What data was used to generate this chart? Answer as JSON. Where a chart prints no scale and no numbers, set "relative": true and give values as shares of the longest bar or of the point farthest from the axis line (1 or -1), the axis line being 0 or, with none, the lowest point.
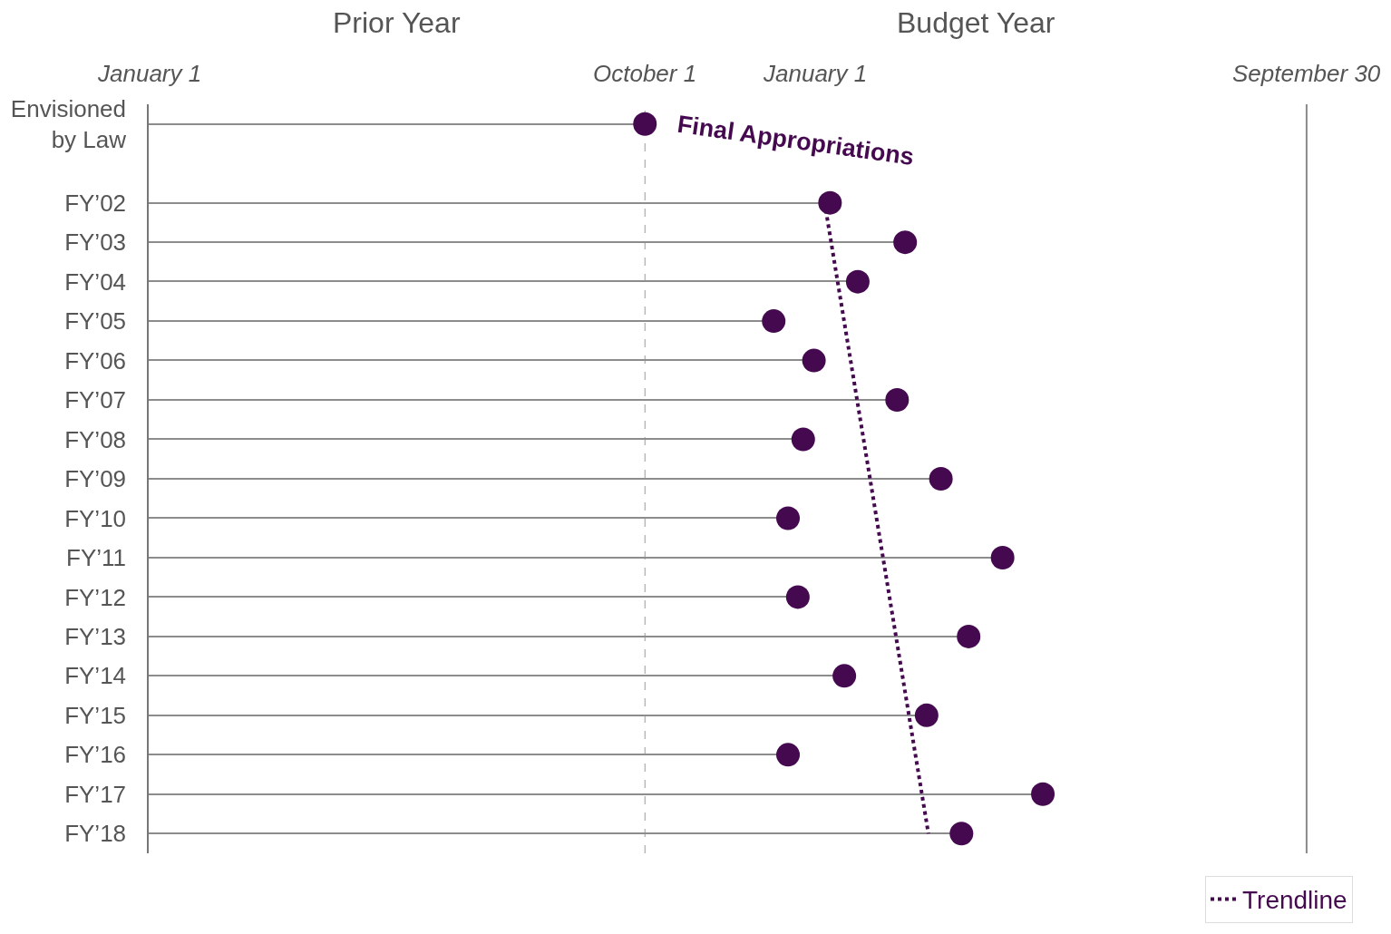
{
  "chart_data": {
    "type": "lollipop",
    "orientation": "horizontal",
    "relative": true,
    "legend": "bottom right",
    "categories": [
      "Envisioned by Law",
      null,
      "FY’02",
      "FY’03",
      "FY’04",
      "FY’05",
      "FY’06",
      "FY’07",
      "FY’08",
      "FY’09",
      "FY’10",
      "FY’11",
      "FY’12",
      "FY’13",
      "FY’14",
      "FY’15",
      "FY’16",
      "FY’17",
      "FY’18"
    ],
    "series": [
      {
        "color": "#45094f",
        "marker": "circle",
        "values": [
          0.555,
          null,
          0.762,
          0.846,
          0.793,
          0.699,
          0.744,
          0.837,
          0.732,
          0.886,
          0.715,
          0.955,
          0.726,
          0.917,
          0.778,
          0.87,
          0.715,
          1,
          0.909
        ]
      },
      {
        "name": "Trendline",
        "type": "line",
        "line_style": "dotted",
        "color": "#45094f",
        "values": [
          null,
          null,
          0.756,
          null,
          null,
          null,
          null,
          null,
          null,
          null,
          null,
          null,
          null,
          null,
          null,
          null,
          null,
          null,
          0.872
        ]
      }
    ],
    "ref_lines": [
      {
        "axis": "x",
        "value": 0.555,
        "line_style": "dashed",
        "color": "#9a9a9a",
        "label": "October 1"
      },
      {
        "axis": "x",
        "value": 1.295,
        "line_style": "solid",
        "color": "#8a8a8a",
        "label": "September 30"
      }
    ],
    "annotations": [
      "Prior Year",
      "Budget Year",
      "January 1",
      "January 1",
      {
        "text": "Final Appropriations",
        "x": 0.555,
        "y": "Envisioned by Law"
      }
    ]
  }
}
